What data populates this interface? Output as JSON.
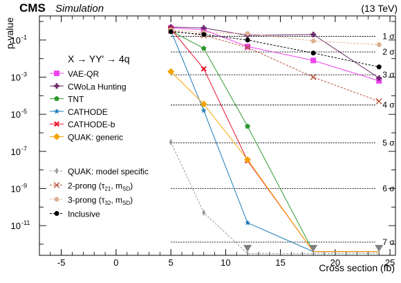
{
  "header": {
    "experiment": "CMS",
    "tag": "Simulation",
    "energy": "(13 TeV)"
  },
  "chart_data": {
    "type": "line",
    "title": "",
    "xlabel": "Cross section (fb)",
    "ylabel": "p-value",
    "xlim": [
      -7,
      25.5
    ],
    "ylim_log10": [
      -12.6,
      0.3
    ],
    "y_scale": "log",
    "x_ticks": [
      -5,
      0,
      5,
      10,
      15,
      20,
      25
    ],
    "y_ticks": [
      {
        "exp": -1,
        "label": "10",
        "sup": "-1"
      },
      {
        "exp": -3,
        "label": "10",
        "sup": "-3"
      },
      {
        "exp": -5,
        "label": "10",
        "sup": "-5"
      },
      {
        "exp": -7,
        "label": "10",
        "sup": "-7"
      },
      {
        "exp": -9,
        "label": "10",
        "sup": "-9"
      },
      {
        "exp": -11,
        "label": "10",
        "sup": "-11"
      }
    ],
    "legend_title": "X → YY′ → 4q",
    "legend_placement": "left",
    "sigma_lines": [
      {
        "label": "1 σ",
        "log10p": -0.8
      },
      {
        "label": "2 σ",
        "log10p": -1.64
      },
      {
        "label": "3 σ",
        "log10p": -2.87
      },
      {
        "label": "4 σ",
        "log10p": -4.5
      },
      {
        "label": "5 σ",
        "log10p": -6.54
      },
      {
        "label": "6 σ",
        "log10p": -9.0
      },
      {
        "label": "7 σ",
        "log10p": -11.89
      }
    ],
    "series": [
      {
        "name": "VAE-QR",
        "color": "#ee44ee",
        "marker": "square",
        "dashed": false,
        "x": [
          5,
          8,
          12,
          18,
          24
        ],
        "log10p": [
          -0.35,
          -0.45,
          -1.35,
          -2.1,
          -3.2
        ]
      },
      {
        "name": "CWoLa Hunting",
        "color": "#6b2a6b",
        "marker": "cross",
        "dashed": false,
        "x": [
          5,
          8,
          12,
          18,
          24
        ],
        "log10p": [
          -0.3,
          -0.35,
          -0.75,
          -0.7,
          -3.05
        ]
      },
      {
        "name": "TNT",
        "color": "#2e9a2e",
        "marker": "pentagon",
        "dashed": false,
        "x": [
          5,
          8,
          12,
          18,
          24
        ],
        "log10p": [
          -0.5,
          -1.45,
          -5.65,
          -12.4,
          -12.4
        ]
      },
      {
        "name": "CATHODE",
        "color": "#1a7ab8",
        "marker": "star",
        "dashed": false,
        "x": [
          5,
          8,
          12,
          18,
          24
        ],
        "log10p": [
          -0.5,
          -4.8,
          -10.85,
          -12.4,
          -12.4
        ]
      },
      {
        "name": "CATHODE-b",
        "color": "#e8132a",
        "marker": "xfilled",
        "dashed": false,
        "x": [
          5,
          8,
          12,
          18,
          24
        ],
        "log10p": [
          -0.4,
          -2.55,
          -7.5,
          -12.4,
          -12.4
        ]
      },
      {
        "name": "QUAK: generic",
        "color": "#f5a300",
        "marker": "diamond",
        "dashed": false,
        "x": [
          5,
          8,
          12,
          18,
          24
        ],
        "log10p": [
          -2.7,
          -4.45,
          -7.45,
          -12.4,
          -12.4
        ]
      },
      {
        "name": "QUAK: model specific",
        "color": "#999999",
        "marker": "thindiamond",
        "dashed": true,
        "x": [
          5,
          8,
          12,
          18,
          24
        ],
        "log10p": [
          -6.5,
          -10.3,
          -12.5,
          -12.5,
          -12.5
        ]
      },
      {
        "name": "2-prong (τ21, mSD)",
        "color": "#b5513a",
        "marker": "x",
        "dashed": true,
        "x": [
          5,
          8,
          12,
          18,
          24
        ],
        "log10p": [
          -0.5,
          -0.75,
          -1.4,
          -3.0,
          -4.3
        ]
      },
      {
        "name": "3-prong (τ32, mSD)",
        "color": "#ddb093",
        "marker": "circle",
        "dashed": true,
        "x": [
          5,
          8,
          12,
          18,
          24
        ],
        "log10p": [
          -0.45,
          -0.6,
          -0.65,
          -1.05,
          -1.25
        ]
      },
      {
        "name": "Inclusive",
        "color": "#000000",
        "marker": "circle",
        "dashed": true,
        "x": [
          5,
          8,
          12,
          18,
          24
        ],
        "log10p": [
          -0.55,
          -0.7,
          -1.0,
          -1.7,
          -2.45
        ]
      }
    ],
    "legend_labels": [
      {
        "text": "VAE-QR"
      },
      {
        "text": "CWoLa Hunting"
      },
      {
        "text": "TNT"
      },
      {
        "text": "CATHODE"
      },
      {
        "text": "CATHODE-b"
      },
      {
        "text": "QUAK: generic"
      },
      {
        "text": "QUAK: model specific"
      },
      {
        "text": "2-prong (",
        "sym": "τ",
        "sub": "21",
        "tail": ", m",
        "sub2": "SD",
        "end": ")"
      },
      {
        "text": "3-prong (",
        "sym": "τ",
        "sub": "32",
        "tail": ", m",
        "sub2": "SD",
        "end": ")"
      },
      {
        "text": "Inclusive"
      }
    ],
    "floor_markers": {
      "color": "#808080",
      "x": [
        12,
        18,
        24
      ]
    }
  }
}
